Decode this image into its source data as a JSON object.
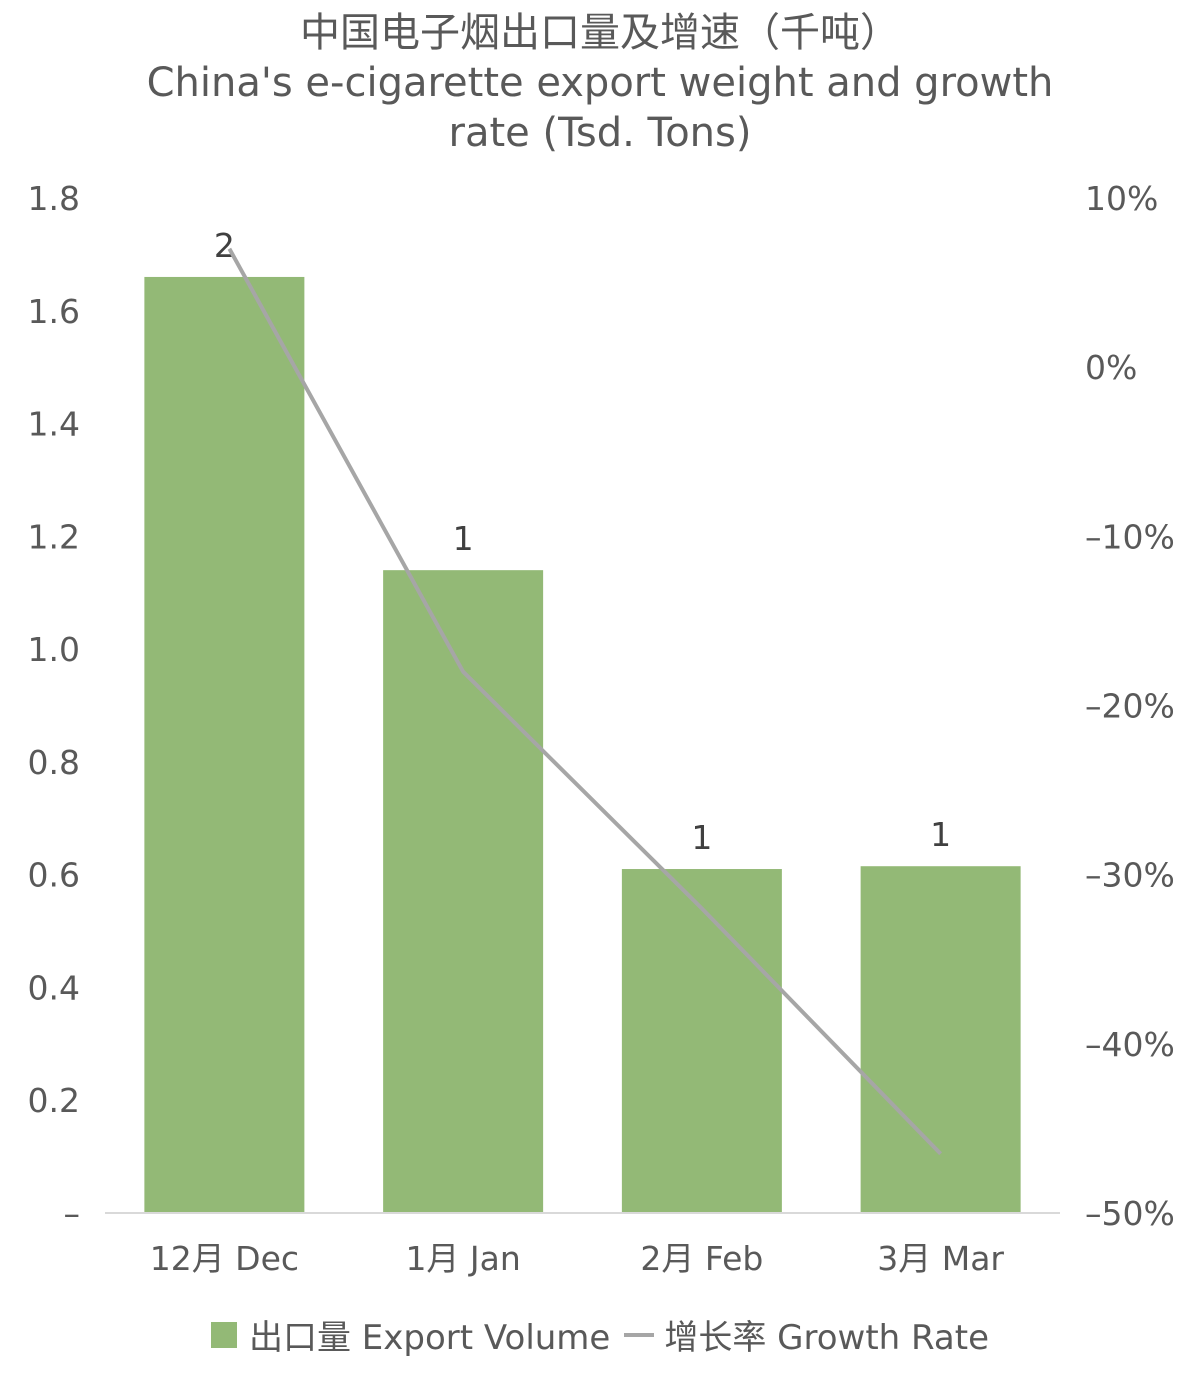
{
  "chart_data": {
    "type": "bar",
    "title": "中国电子烟出口量及增速（千吨）",
    "subtitle_lines": [
      "China's e-cigarette export weight and growth",
      "rate (Tsd. Tons)"
    ],
    "categories": [
      "12月 Dec",
      "1月 Jan",
      "2月 Feb",
      "3月 Mar"
    ],
    "series": [
      {
        "name": "出口量 Export Volume",
        "type": "bar",
        "values": [
          1.66,
          1.14,
          0.61,
          0.615
        ],
        "data_labels": [
          "2",
          "1",
          "1",
          "1"
        ],
        "color": "#93b976"
      },
      {
        "name": "增长率 Growth Rate",
        "type": "line",
        "values": [
          7.0,
          -18.0,
          -32.0,
          -46.5
        ],
        "color": "#a6a6a6",
        "axis": "right"
      }
    ],
    "y_left": {
      "ylim": [
        0,
        1.8
      ],
      "ticks": [
        "–",
        "0.2",
        "0.4",
        "0.6",
        "0.8",
        "1.0",
        "1.2",
        "1.4",
        "1.6",
        "1.8"
      ]
    },
    "y_right": {
      "ylim": [
        -50,
        10
      ],
      "ticks": [
        "–50%",
        "–40%",
        "–30%",
        "–20%",
        "–10%",
        "0%",
        "10%"
      ],
      "unit": "%"
    },
    "legend_position": "bottom",
    "grid": false
  }
}
